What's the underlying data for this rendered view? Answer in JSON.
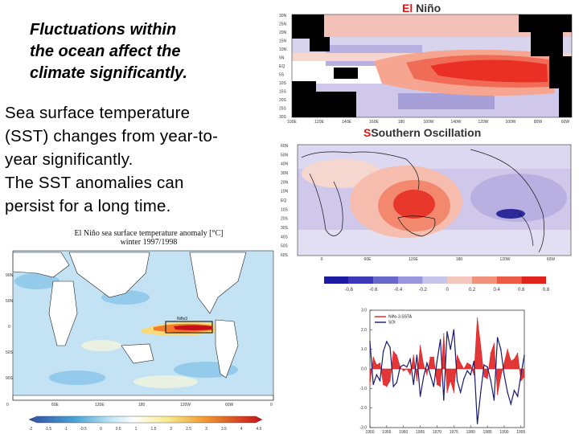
{
  "slide": {
    "heading": "Fluctuations within\nthe ocean affect the\nclimate significantly.",
    "body": "Sea surface temperature\n(SST) changes from year-to-\nyear significantly.\nThe SST anomalies can\npersist for a long time."
  },
  "left_map": {
    "title_line1": "El Niño sea surface temperature anomaly [°C]",
    "title_line2": "winter 1997/1998",
    "box_label": "Niño3",
    "lat_ticks": [
      "90N",
      "50N",
      "0",
      "50S",
      "90S"
    ],
    "lon_ticks": [
      "0",
      "60E",
      "120E",
      "180",
      "120W",
      "60W",
      "0"
    ],
    "colorbar_ticks": [
      "-2",
      "-1.5",
      "-1",
      "-0.5",
      "0",
      "0.5",
      "1",
      "1.5",
      "2",
      "2.5",
      "3",
      "3.5",
      "4",
      "4.5"
    ]
  },
  "el_nino_map": {
    "title_part1": "El",
    "title_part2": "Niño",
    "lat_ticks": [
      "30N",
      "25N",
      "20N",
      "15N",
      "10N",
      "5N",
      "EQ",
      "5S",
      "10S",
      "15S",
      "20S",
      "25S",
      "30S"
    ],
    "lon_ticks": [
      "100E",
      "120E",
      "140E",
      "160E",
      "180",
      "160W",
      "140W",
      "120W",
      "100W",
      "80W",
      "60W"
    ]
  },
  "so_map": {
    "title_part1": "Southern",
    "title_part2": "Oscillation",
    "lat_ticks": [
      "60N",
      "50N",
      "40N",
      "30N",
      "20N",
      "10N",
      "EQ",
      "10S",
      "20S",
      "30S",
      "40S",
      "50S",
      "60S"
    ],
    "lon_ticks": [
      "0",
      "60E",
      "120E",
      "180",
      "120W",
      "60W"
    ],
    "colorbar_ticks": [
      "-0.8",
      "-0.6",
      "-0.4",
      "-0.2",
      "0",
      "0.2",
      "0.4",
      "0.6",
      "0.8"
    ]
  },
  "chart_data": {
    "type": "line",
    "title": "",
    "xlabel": "",
    "ylabel": "",
    "xlim": [
      1950,
      1996
    ],
    "ylim": [
      -3.0,
      3.0
    ],
    "x_ticks": [
      "1950",
      "1955",
      "1960",
      "1965",
      "1970",
      "1975",
      "1980",
      "1985",
      "1990",
      "1995"
    ],
    "y_ticks": [
      "3.0",
      "2.0",
      "1.0",
      "0.0",
      "-1.0",
      "-2.0",
      "-3.0"
    ],
    "legend_position": "top-left",
    "series": [
      {
        "name": "Niño-3-SSTA",
        "color": "#e02020",
        "x": [
          1950,
          1951,
          1952,
          1953,
          1954,
          1955,
          1956,
          1957,
          1958,
          1959,
          1960,
          1961,
          1962,
          1963,
          1964,
          1965,
          1966,
          1967,
          1968,
          1969,
          1970,
          1971,
          1972,
          1973,
          1974,
          1975,
          1976,
          1977,
          1978,
          1979,
          1980,
          1981,
          1982,
          1983,
          1984,
          1985,
          1986,
          1987,
          1988,
          1989,
          1990,
          1991,
          1992,
          1993,
          1994,
          1995,
          1996
        ],
        "y": [
          -0.8,
          0.6,
          0.2,
          0.3,
          -0.8,
          -0.9,
          -0.6,
          0.9,
          0.7,
          0.1,
          -0.1,
          0.0,
          -0.3,
          0.7,
          -0.6,
          1.2,
          0.2,
          -0.3,
          0.6,
          0.6,
          -0.8,
          -0.9,
          1.8,
          -1.2,
          -0.6,
          -1.2,
          0.7,
          0.3,
          0.0,
          0.3,
          0.2,
          -0.3,
          2.6,
          1.2,
          -0.4,
          -0.5,
          0.8,
          1.3,
          -1.3,
          -0.4,
          0.3,
          1.0,
          0.4,
          0.5,
          0.8,
          -0.6,
          -0.4
        ]
      },
      {
        "name": "SOI",
        "color": "#1a1a6e",
        "x": [
          1950,
          1951,
          1952,
          1953,
          1954,
          1955,
          1956,
          1957,
          1958,
          1959,
          1960,
          1961,
          1962,
          1963,
          1964,
          1965,
          1966,
          1967,
          1968,
          1969,
          1970,
          1971,
          1972,
          1973,
          1974,
          1975,
          1976,
          1977,
          1978,
          1979,
          1980,
          1981,
          1982,
          1983,
          1984,
          1985,
          1986,
          1987,
          1988,
          1989,
          1990,
          1991,
          1992,
          1993,
          1994,
          1995,
          1996
        ],
        "y": [
          1.4,
          -0.8,
          -0.3,
          -0.6,
          0.9,
          1.4,
          1.1,
          -0.9,
          -0.7,
          0.1,
          0.2,
          0.1,
          0.5,
          -0.8,
          0.7,
          -1.4,
          -0.4,
          0.3,
          -0.3,
          -0.9,
          0.4,
          1.5,
          -1.6,
          1.9,
          1.0,
          2.0,
          -0.6,
          -1.2,
          -0.5,
          -0.1,
          -0.3,
          0.4,
          -2.8,
          -1.2,
          0.2,
          0.1,
          -0.6,
          -1.6,
          1.6,
          1.0,
          -0.3,
          -1.2,
          -1.8,
          -1.1,
          -1.4,
          -0.3,
          0.7
        ]
      }
    ]
  }
}
